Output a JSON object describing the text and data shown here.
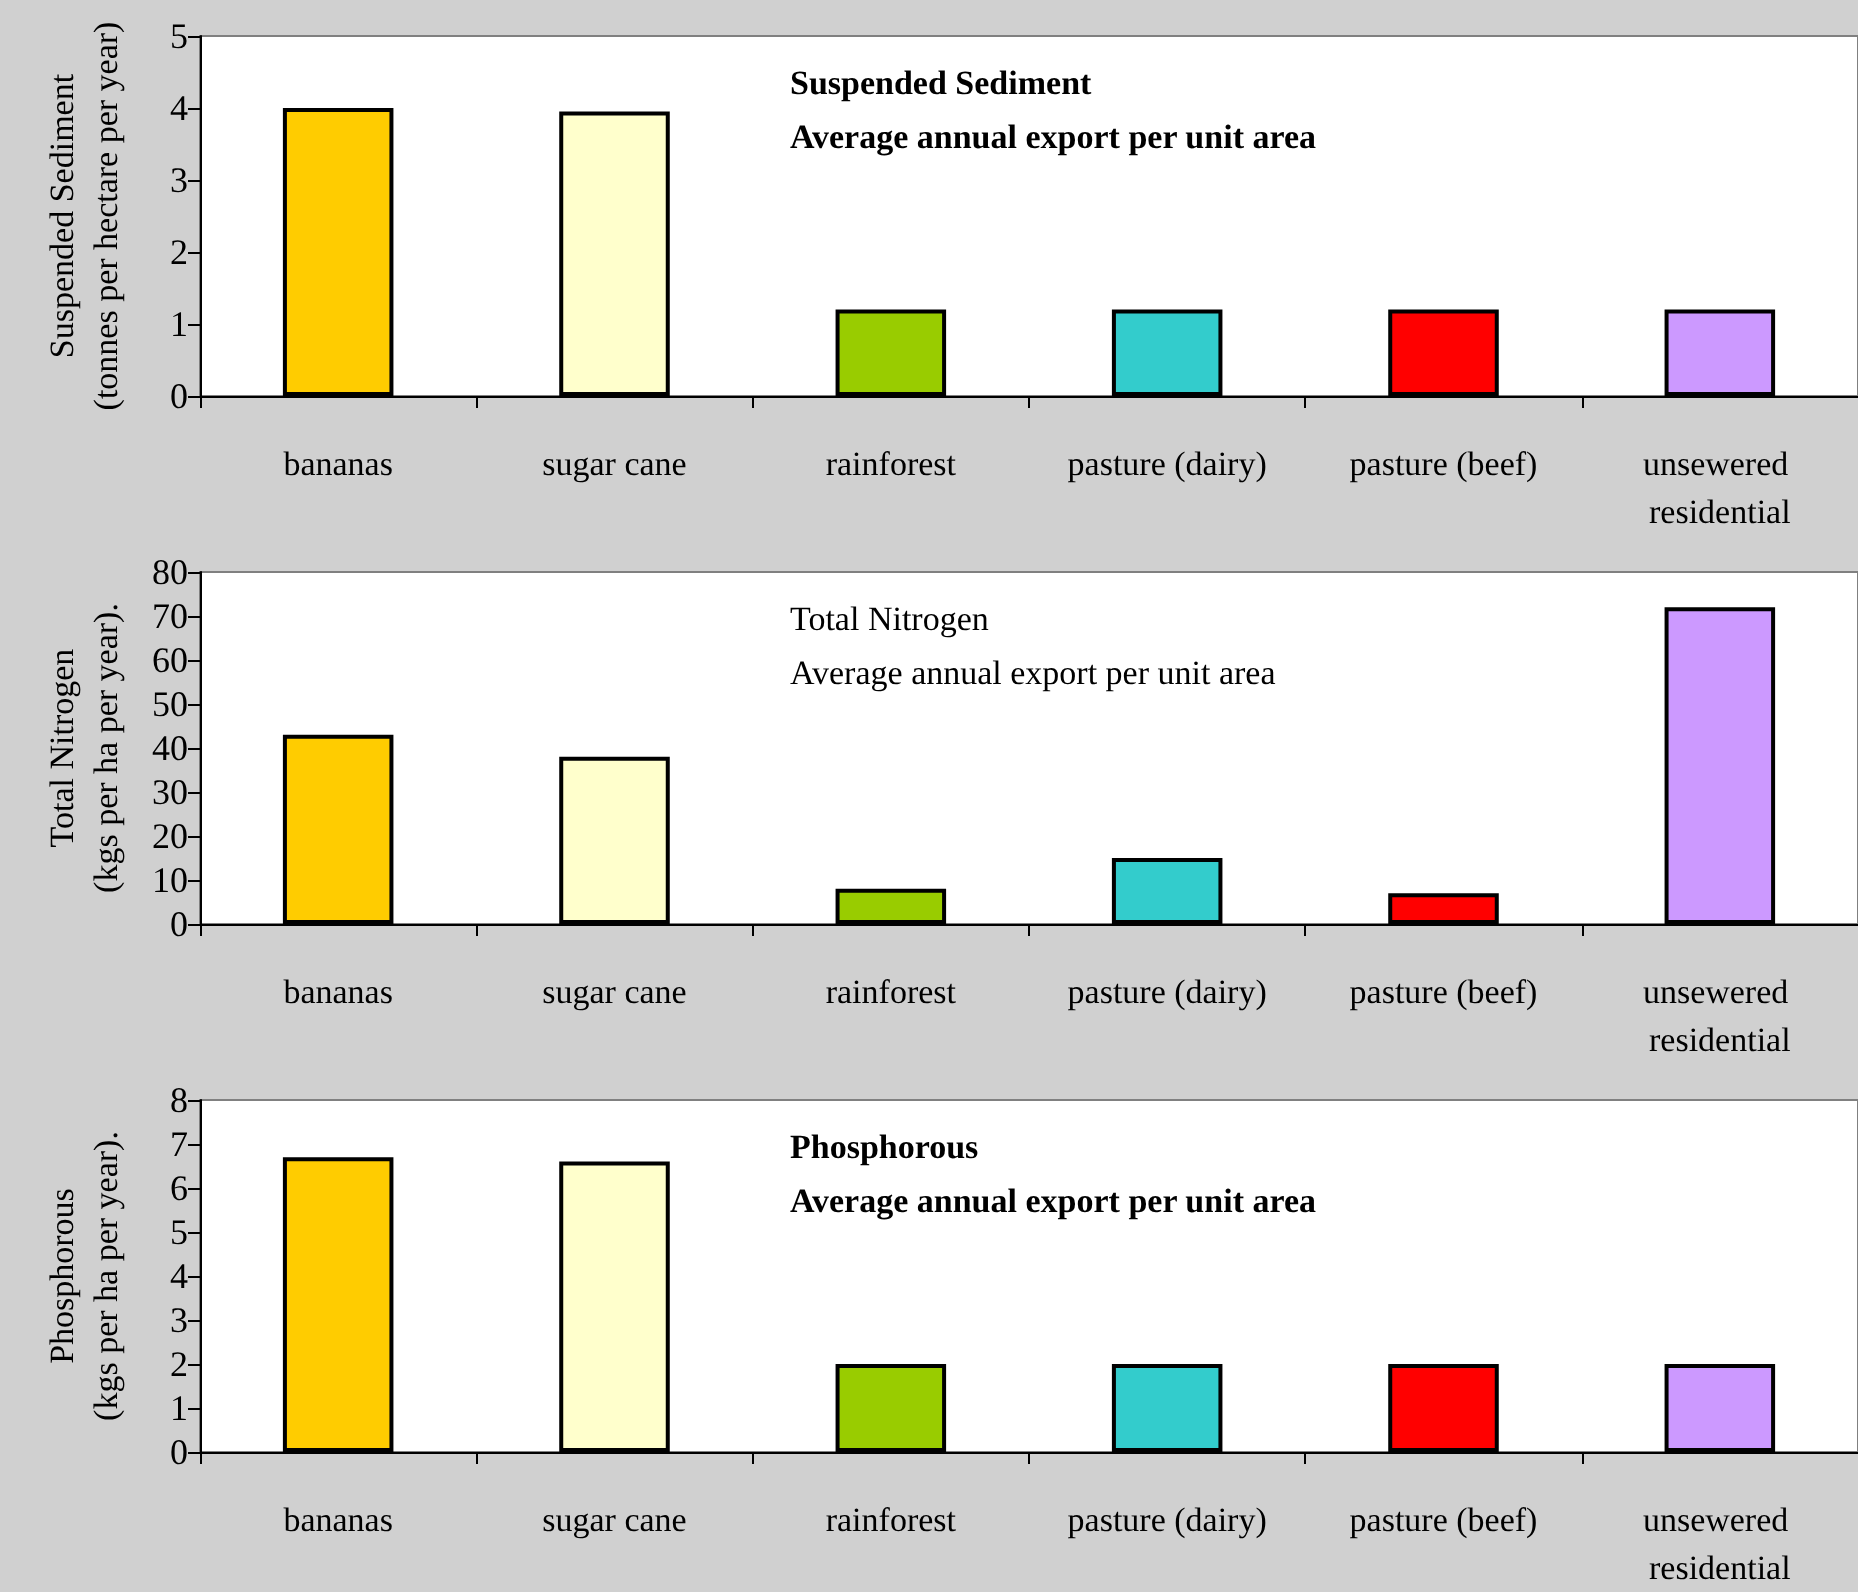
{
  "chart_data": [
    {
      "type": "bar",
      "title": "Suspended Sediment",
      "subtitle": "Average annual export per unit area",
      "ylabel": "Suspended Sediment\n(tonnes per hectare per year)",
      "categories": [
        "bananas",
        "sugar cane",
        "rainforest",
        "pasture (dairy)",
        "pasture (beef)",
        "unsewered residential"
      ],
      "values": [
        4.0,
        3.95,
        1.2,
        1.2,
        1.2,
        1.2
      ],
      "colors": [
        "#ffcc00",
        "#ffffcc",
        "#99cc00",
        "#33cccc",
        "#ff0000",
        "#cc99ff"
      ],
      "ylim": [
        0,
        5
      ],
      "yticks": [
        0,
        1,
        2,
        3,
        4,
        5
      ],
      "grid": false
    },
    {
      "type": "bar",
      "title": "Total Nitrogen",
      "subtitle": "Average annual export per unit area",
      "ylabel": "Total Nitrogen\n(kgs per ha per year).",
      "categories": [
        "bananas",
        "sugar cane",
        "rainforest",
        "pasture (dairy)",
        "pasture (beef)",
        "unsewered residential"
      ],
      "values": [
        43,
        38,
        8,
        15,
        7,
        72
      ],
      "colors": [
        "#ffcc00",
        "#ffffcc",
        "#99cc00",
        "#33cccc",
        "#ff0000",
        "#cc99ff"
      ],
      "ylim": [
        0,
        80
      ],
      "yticks": [
        0,
        10,
        20,
        30,
        40,
        50,
        60,
        70,
        80
      ],
      "grid": false
    },
    {
      "type": "bar",
      "title": "Phosphorous",
      "subtitle": "Average annual export per unit area",
      "ylabel": "Phosphorous\n(kgs per ha per year).",
      "categories": [
        "bananas",
        "sugar cane",
        "rainforest",
        "pasture (dairy)",
        "pasture (beef)",
        "unsewered residential"
      ],
      "values": [
        6.7,
        6.6,
        2,
        2,
        2,
        2
      ],
      "colors": [
        "#ffcc00",
        "#ffffcc",
        "#99cc00",
        "#33cccc",
        "#ff0000",
        "#cc99ff"
      ],
      "ylim": [
        0,
        8
      ],
      "yticks": [
        0,
        1,
        2,
        3,
        4,
        5,
        6,
        7,
        8
      ],
      "grid": false
    }
  ]
}
